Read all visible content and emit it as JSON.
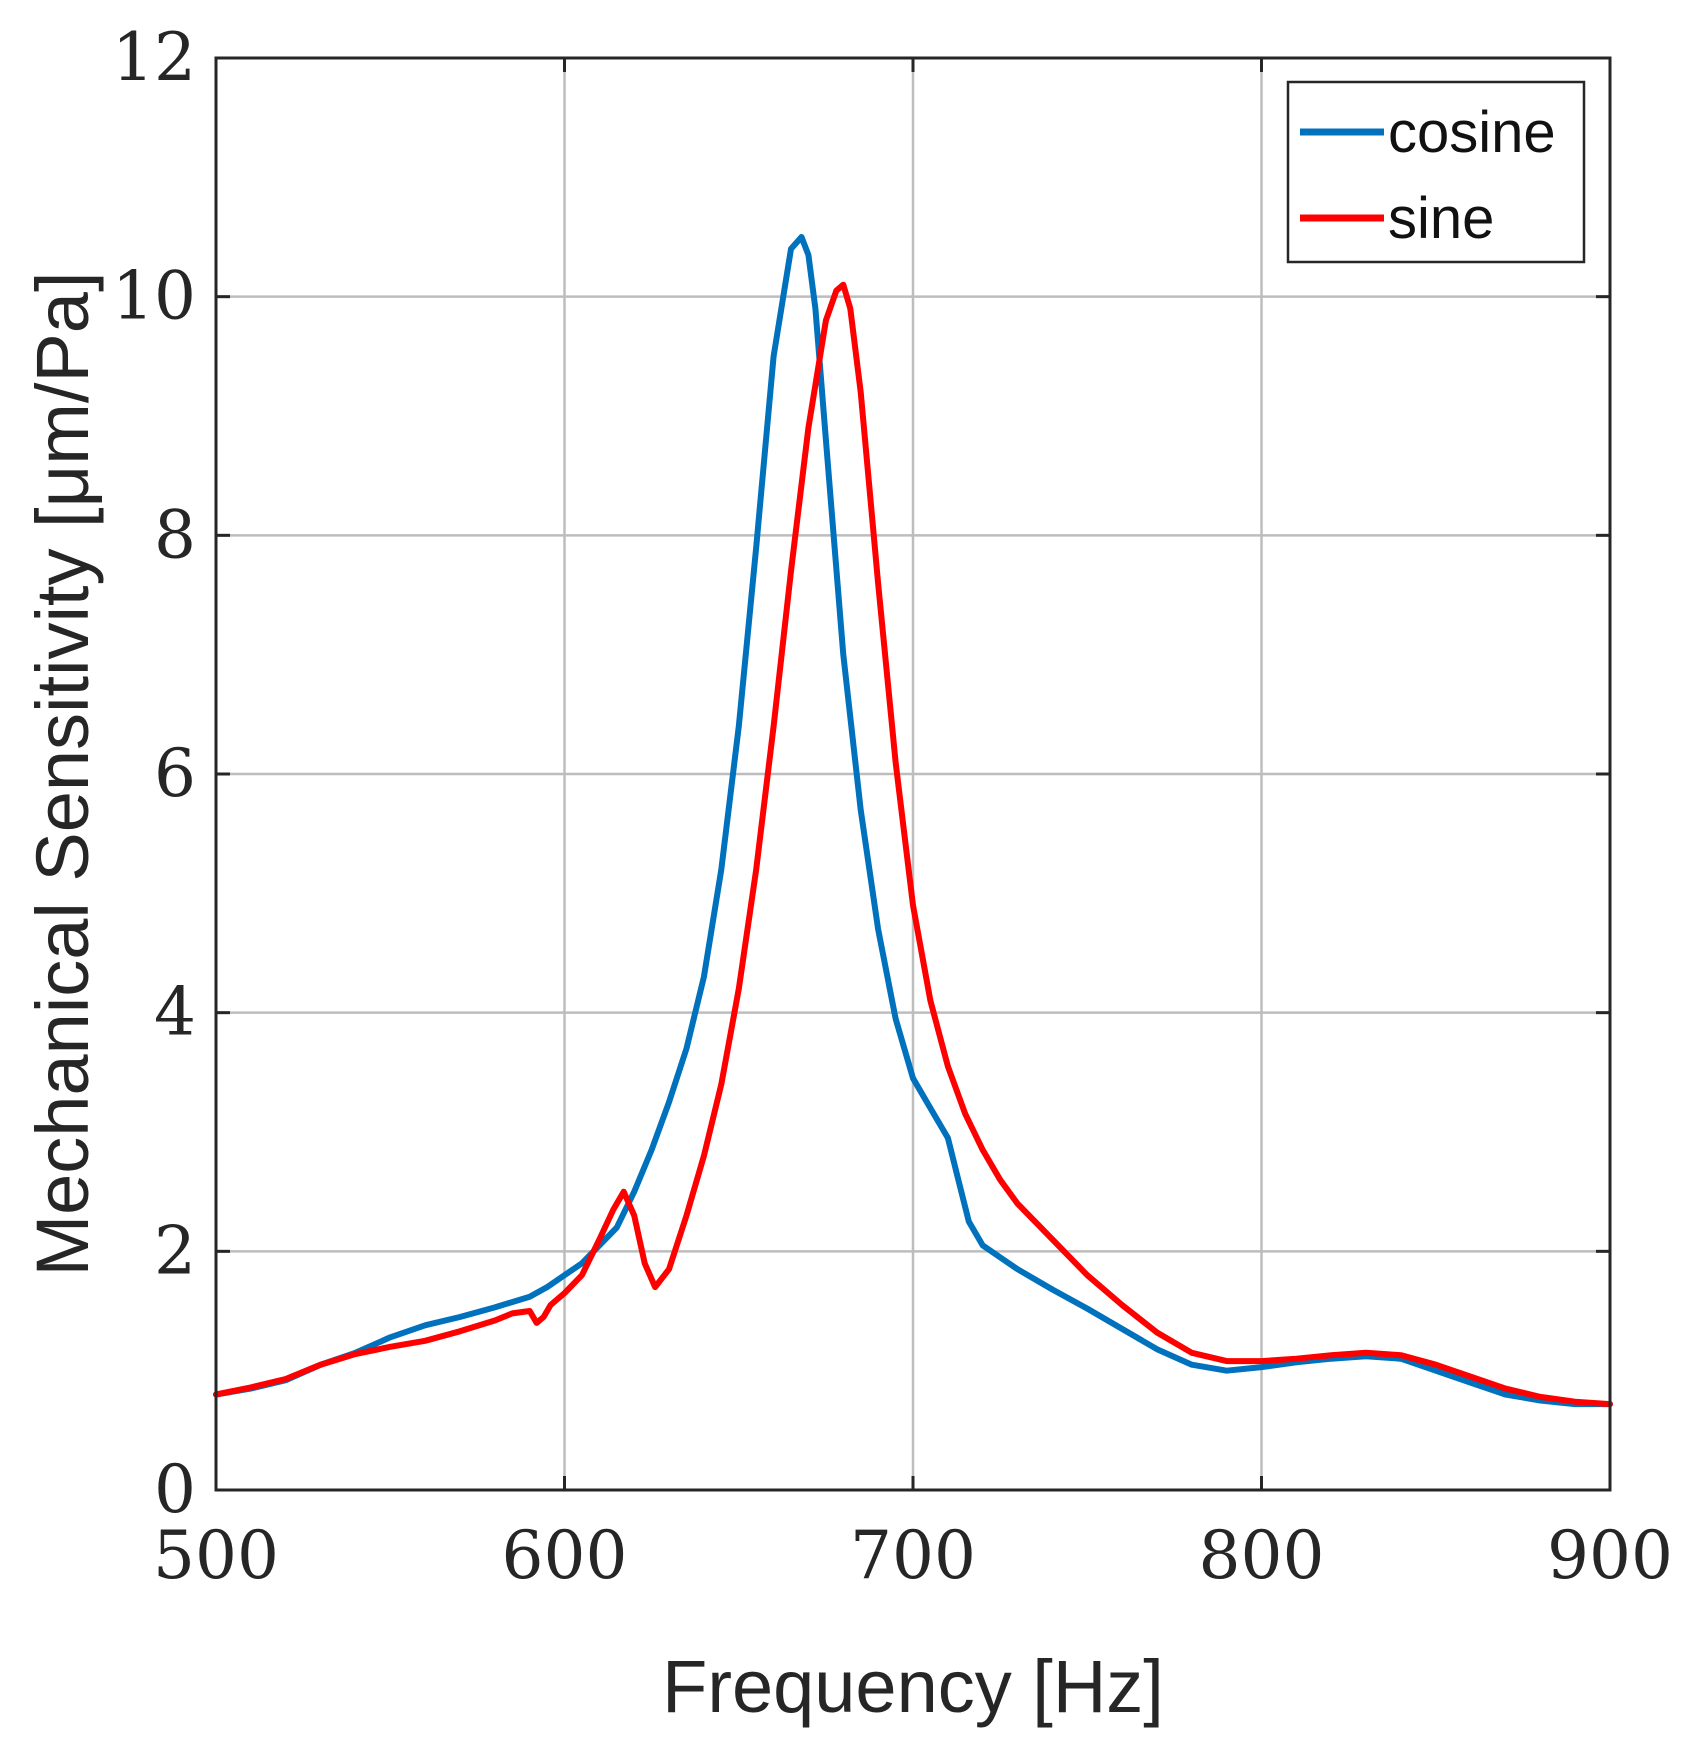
{
  "chart_data": {
    "type": "line",
    "title": "",
    "xlabel": "Frequency [Hz]",
    "ylabel": "Mechanical Sensitivity [μm/Pa]",
    "xlim": [
      500,
      900
    ],
    "ylim": [
      0,
      12
    ],
    "xticks": [
      500,
      600,
      700,
      800,
      900
    ],
    "yticks": [
      0,
      2,
      4,
      6,
      8,
      10,
      12
    ],
    "xtick_labels": [
      "500",
      "600",
      "700",
      "800",
      "900"
    ],
    "ytick_labels": [
      "0",
      "2",
      "4",
      "6",
      "8",
      "10",
      "12"
    ],
    "grid": true,
    "legend_position": "top-right",
    "series": [
      {
        "name": "cosine",
        "color": "#0072BD",
        "x": [
          500,
          510,
          520,
          530,
          540,
          550,
          560,
          570,
          580,
          590,
          595,
          600,
          605,
          610,
          615,
          620,
          625,
          630,
          635,
          640,
          645,
          650,
          655,
          660,
          665,
          668,
          670,
          672,
          675,
          680,
          685,
          690,
          695,
          700,
          705,
          710,
          713,
          716,
          720,
          725,
          730,
          740,
          750,
          760,
          770,
          780,
          790,
          800,
          810,
          820,
          830,
          840,
          850,
          860,
          870,
          880,
          890,
          900
        ],
        "y": [
          0.8,
          0.85,
          0.92,
          1.05,
          1.15,
          1.28,
          1.38,
          1.45,
          1.53,
          1.62,
          1.7,
          1.8,
          1.9,
          2.05,
          2.2,
          2.5,
          2.85,
          3.25,
          3.7,
          4.3,
          5.2,
          6.4,
          7.9,
          9.5,
          10.4,
          10.5,
          10.35,
          9.9,
          8.8,
          7.0,
          5.7,
          4.7,
          3.95,
          3.45,
          3.2,
          2.95,
          2.6,
          2.25,
          2.05,
          1.95,
          1.85,
          1.68,
          1.52,
          1.35,
          1.18,
          1.05,
          1.0,
          1.03,
          1.07,
          1.1,
          1.12,
          1.1,
          1.0,
          0.9,
          0.8,
          0.75,
          0.72,
          0.72
        ]
      },
      {
        "name": "sine",
        "color": "#FF0000",
        "x": [
          500,
          510,
          520,
          530,
          540,
          550,
          560,
          570,
          580,
          585,
          590,
          592,
          594,
          596,
          600,
          605,
          610,
          614,
          617,
          620,
          623,
          626,
          630,
          635,
          640,
          645,
          650,
          655,
          660,
          665,
          670,
          675,
          678,
          680,
          682,
          685,
          690,
          695,
          700,
          705,
          710,
          715,
          720,
          725,
          730,
          740,
          750,
          760,
          770,
          780,
          790,
          800,
          810,
          820,
          830,
          840,
          850,
          860,
          870,
          880,
          890,
          900
        ],
        "y": [
          0.8,
          0.86,
          0.93,
          1.05,
          1.14,
          1.2,
          1.25,
          1.33,
          1.42,
          1.48,
          1.5,
          1.4,
          1.45,
          1.55,
          1.65,
          1.8,
          2.1,
          2.35,
          2.5,
          2.3,
          1.9,
          1.7,
          1.85,
          2.3,
          2.8,
          3.4,
          4.2,
          5.2,
          6.4,
          7.7,
          8.9,
          9.8,
          10.05,
          10.1,
          9.9,
          9.2,
          7.6,
          6.1,
          4.9,
          4.1,
          3.55,
          3.15,
          2.85,
          2.6,
          2.4,
          2.1,
          1.8,
          1.55,
          1.32,
          1.15,
          1.08,
          1.08,
          1.1,
          1.13,
          1.15,
          1.13,
          1.05,
          0.95,
          0.85,
          0.78,
          0.74,
          0.72
        ]
      }
    ]
  }
}
